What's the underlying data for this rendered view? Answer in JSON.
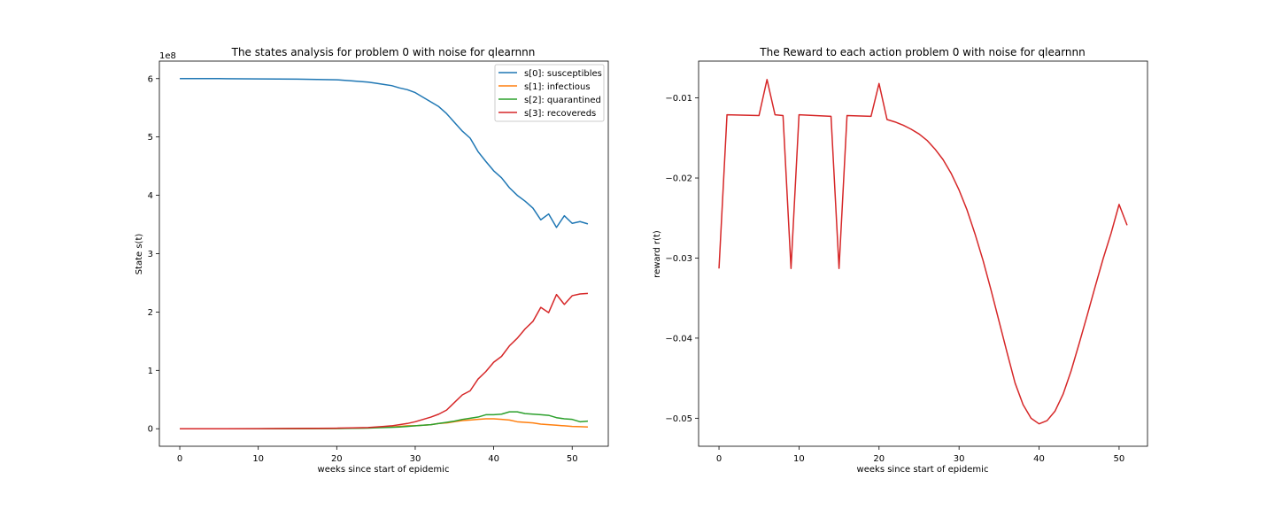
{
  "chart_data": [
    {
      "type": "line",
      "title": "The states analysis for problem 0 with noise for qlearnnn",
      "xlabel": "weeks since start of epidemic",
      "ylabel": "State s(t)",
      "offset_label": "1e8",
      "xlim": [
        -2.6,
        54.6
      ],
      "ylim": [
        -0.3,
        6.3
      ],
      "xticks": [
        0,
        10,
        20,
        30,
        40,
        50
      ],
      "yticks": [
        0,
        1,
        2,
        3,
        4,
        5,
        6
      ],
      "ytick_labels": [
        "0",
        "1",
        "2",
        "3",
        "4",
        "5",
        "6"
      ],
      "legend_position": "top-right",
      "x": [
        0,
        5,
        10,
        15,
        20,
        22,
        24,
        25,
        26,
        27,
        28,
        29,
        30,
        31,
        32,
        33,
        34,
        35,
        36,
        37,
        38,
        39,
        40,
        41,
        42,
        43,
        44,
        45,
        46,
        47,
        48,
        49,
        50,
        51,
        52
      ],
      "series": [
        {
          "name": "s[0]: susceptibles",
          "color": "#1f77b4",
          "values": [
            6.0,
            6.0,
            5.995,
            5.99,
            5.98,
            5.96,
            5.94,
            5.92,
            5.9,
            5.88,
            5.84,
            5.81,
            5.76,
            5.68,
            5.6,
            5.52,
            5.4,
            5.25,
            5.1,
            4.98,
            4.75,
            4.58,
            4.42,
            4.3,
            4.13,
            4.0,
            3.9,
            3.78,
            3.58,
            3.68,
            3.45,
            3.65,
            3.52,
            3.55,
            3.51
          ]
        },
        {
          "name": "s[1]: infectious",
          "color": "#ff7f0e",
          "values": [
            0,
            0,
            0,
            0.002,
            0.005,
            0.01,
            0.015,
            0.02,
            0.025,
            0.03,
            0.04,
            0.05,
            0.05,
            0.06,
            0.07,
            0.09,
            0.1,
            0.12,
            0.14,
            0.15,
            0.16,
            0.17,
            0.17,
            0.16,
            0.15,
            0.12,
            0.11,
            0.1,
            0.08,
            0.07,
            0.06,
            0.05,
            0.04,
            0.035,
            0.03
          ]
        },
        {
          "name": "s[2]: quarantined",
          "color": "#2ca02c",
          "values": [
            0,
            0,
            0,
            0.002,
            0.004,
            0.008,
            0.012,
            0.016,
            0.02,
            0.025,
            0.03,
            0.04,
            0.05,
            0.06,
            0.07,
            0.09,
            0.11,
            0.13,
            0.16,
            0.18,
            0.2,
            0.24,
            0.24,
            0.25,
            0.29,
            0.29,
            0.26,
            0.25,
            0.24,
            0.23,
            0.19,
            0.17,
            0.16,
            0.12,
            0.13
          ]
        },
        {
          "name": "s[3]: recovereds",
          "color": "#d62728",
          "values": [
            0,
            0,
            0.002,
            0.005,
            0.01,
            0.015,
            0.02,
            0.03,
            0.04,
            0.05,
            0.07,
            0.09,
            0.12,
            0.16,
            0.2,
            0.25,
            0.32,
            0.45,
            0.58,
            0.65,
            0.85,
            0.98,
            1.14,
            1.24,
            1.42,
            1.55,
            1.71,
            1.84,
            2.08,
            1.99,
            2.3,
            2.13,
            2.28,
            2.31,
            2.32
          ]
        }
      ]
    },
    {
      "type": "line",
      "title": "The Reward to each action problem 0 with noise for qlearnnn",
      "xlabel": "weeks since start of epidemic",
      "ylabel": "reward r(t)",
      "xlim": [
        -2.55,
        53.55
      ],
      "ylim": [
        -0.0535,
        -0.0054
      ],
      "xticks": [
        0,
        10,
        20,
        30,
        40,
        50
      ],
      "yticks": [
        -0.05,
        -0.04,
        -0.03,
        -0.02,
        -0.01
      ],
      "ytick_labels": [
        "−0.05",
        "−0.04",
        "−0.03",
        "−0.02",
        "−0.01"
      ],
      "series": [
        {
          "name": "reward",
          "color": "#d62728",
          "x": [
            0,
            1,
            5,
            6,
            7,
            8,
            9,
            10,
            14,
            15,
            16,
            19,
            20,
            21,
            22,
            23,
            24,
            25,
            26,
            27,
            28,
            29,
            30,
            31,
            32,
            33,
            34,
            35,
            36,
            37,
            38,
            39,
            40,
            41,
            42,
            43,
            44,
            45,
            46,
            47,
            48,
            49,
            50,
            51
          ],
          "values": [
            -0.0313,
            -0.0121,
            -0.0122,
            -0.0077,
            -0.0121,
            -0.0122,
            -0.0313,
            -0.0121,
            -0.0123,
            -0.0313,
            -0.0122,
            -0.0123,
            -0.0082,
            -0.0127,
            -0.013,
            -0.0134,
            -0.0139,
            -0.0145,
            -0.0153,
            -0.0164,
            -0.0177,
            -0.0194,
            -0.0215,
            -0.024,
            -0.027,
            -0.0303,
            -0.034,
            -0.0379,
            -0.0418,
            -0.0456,
            -0.0483,
            -0.05,
            -0.0507,
            -0.0503,
            -0.0491,
            -0.047,
            -0.0441,
            -0.0407,
            -0.0372,
            -0.0336,
            -0.0301,
            -0.0269,
            -0.0233,
            -0.0259
          ]
        }
      ]
    }
  ]
}
